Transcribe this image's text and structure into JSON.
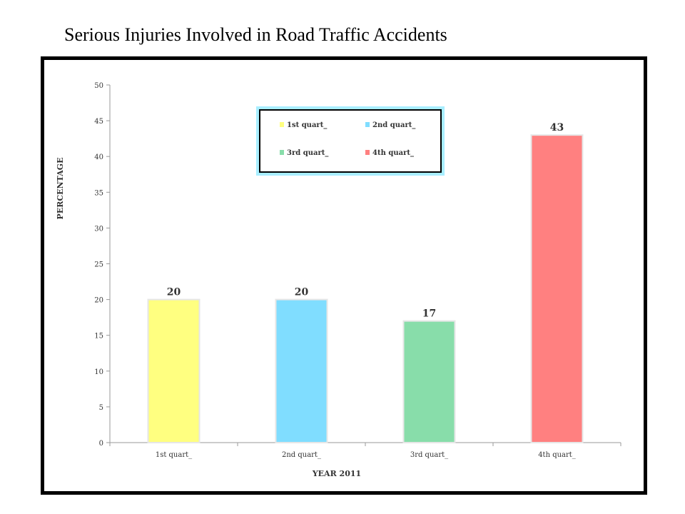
{
  "slide": {
    "title": "Serious Injuries Involved in Road Traffic Accidents"
  },
  "chart_data": {
    "type": "bar",
    "categories": [
      "1st quart_",
      "2nd quart_",
      "3rd quart_",
      "4th quart_"
    ],
    "values": [
      20,
      20,
      17,
      43
    ],
    "data_labels": [
      "20",
      "20",
      "17",
      "43"
    ],
    "colors": [
      "#FFFF80",
      "#80DDFF",
      "#88DDAA",
      "#FF8080"
    ],
    "xlabel": "YEAR 2011",
    "ylabel": "PERCENTAGE",
    "ylim": [
      0,
      50
    ],
    "yticks": [
      0,
      5,
      10,
      15,
      20,
      25,
      30,
      35,
      40,
      45,
      50
    ],
    "grid": false,
    "legend": {
      "placement": "top-center",
      "entries": [
        "1st quart_",
        "2nd quart_",
        "3rd quart_",
        "4th quart_"
      ],
      "border_color": "#000000",
      "glow_color": "#A8EEFF"
    }
  }
}
